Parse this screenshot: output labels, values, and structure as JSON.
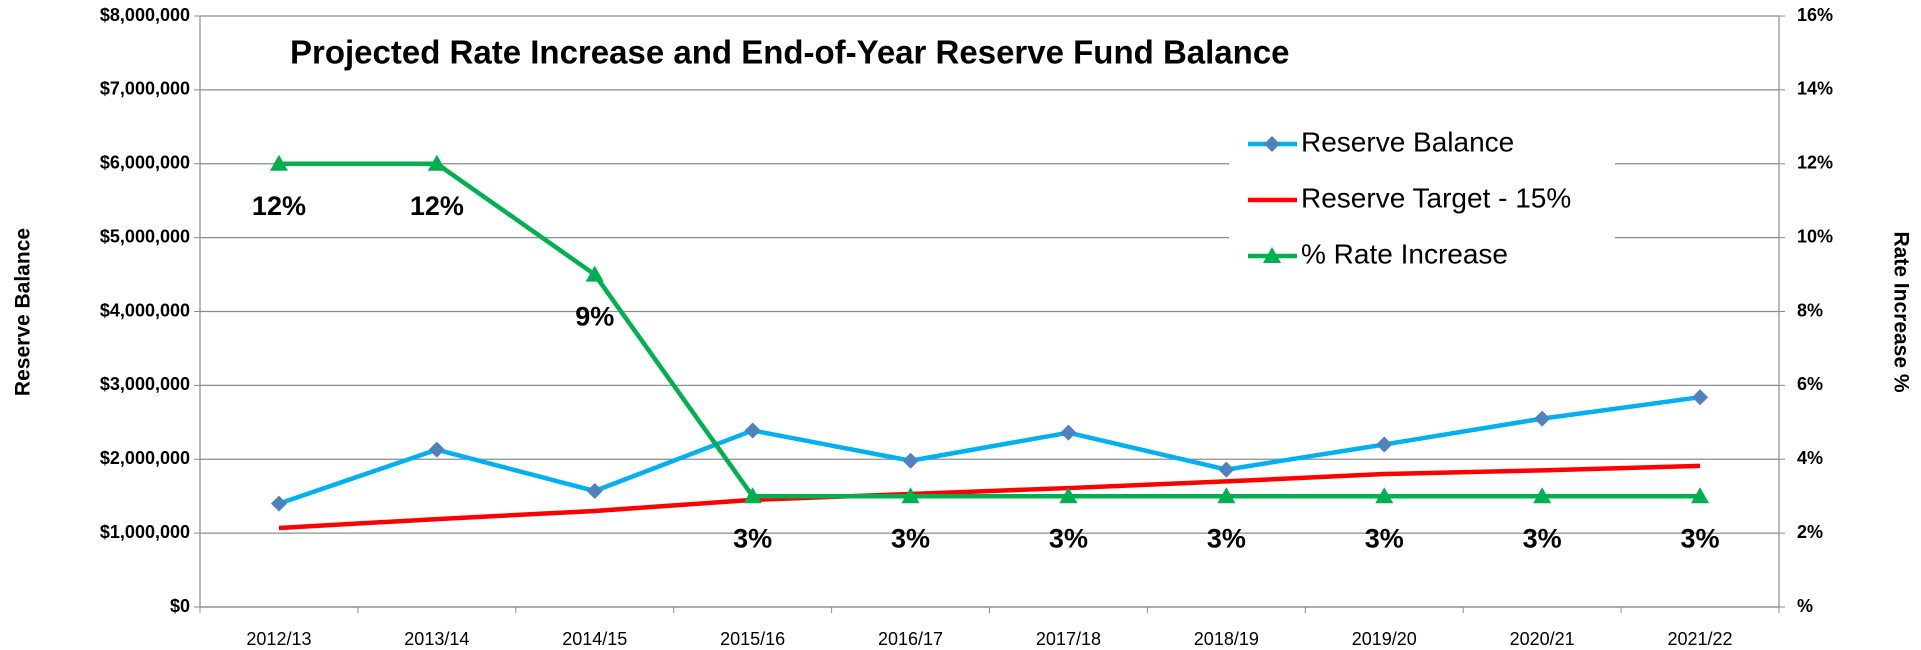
{
  "chart_data": {
    "type": "line",
    "title": "Projected Rate Increase and End-of-Year Reserve Fund Balance",
    "y_label": "Reserve Balance",
    "y2_label": "Rate Increase %",
    "categories": [
      "2012/13",
      "2013/14",
      "2014/15",
      "2015/16",
      "2016/17",
      "2017/18",
      "2018/19",
      "2019/20",
      "2020/21",
      "2021/22"
    ],
    "series": [
      {
        "name": "Reserve Balance",
        "color": "#00b0f0",
        "marker": "diamond",
        "marker_color": "#4f81bd",
        "values": [
          1400000,
          2130000,
          1570000,
          2390000,
          1980000,
          2360000,
          1860000,
          2200000,
          2550000,
          2840000
        ]
      },
      {
        "name": "Reserve Target - 15%",
        "color": "#ff0000",
        "marker": "none",
        "values": [
          1070000,
          1190000,
          1300000,
          1450000,
          1530000,
          1610000,
          1700000,
          1800000,
          1850000,
          1910000
        ]
      },
      {
        "name": "% Rate Increase",
        "color": "#00b050",
        "marker": "triangle",
        "marker_color": "#00b050",
        "axis": "y2",
        "values": [
          12,
          12,
          9,
          3,
          3,
          3,
          3,
          3,
          3,
          3
        ],
        "value_labels": [
          "12%",
          "12%",
          "9%",
          "3%",
          "3%",
          "3%",
          "3%",
          "3%",
          "3%",
          "3%"
        ]
      }
    ],
    "ylim": [
      0,
      8000000
    ],
    "yticks": [
      {
        "value": 0,
        "label": "$0"
      },
      {
        "value": 1000000,
        "label": "$1,000,000"
      },
      {
        "value": 2000000,
        "label": "$2,000,000"
      },
      {
        "value": 3000000,
        "label": "$3,000,000"
      },
      {
        "value": 4000000,
        "label": "$4,000,000"
      },
      {
        "value": 5000000,
        "label": "$5,000,000"
      },
      {
        "value": 6000000,
        "label": "$6,000,000"
      },
      {
        "value": 7000000,
        "label": "$7,000,000"
      },
      {
        "value": 8000000,
        "label": "$8,000,000"
      }
    ],
    "y2lim": [
      0,
      16
    ],
    "y2ticks": [
      {
        "value": 0,
        "label": "%"
      },
      {
        "value": 2,
        "label": "2%"
      },
      {
        "value": 4,
        "label": "4%"
      },
      {
        "value": 6,
        "label": "6%"
      },
      {
        "value": 8,
        "label": "8%"
      },
      {
        "value": 10,
        "label": "10%"
      },
      {
        "value": 12,
        "label": "12%"
      },
      {
        "value": 14,
        "label": "14%"
      },
      {
        "value": 16,
        "label": "16%"
      }
    ],
    "grid": true,
    "legend": "upper right"
  }
}
